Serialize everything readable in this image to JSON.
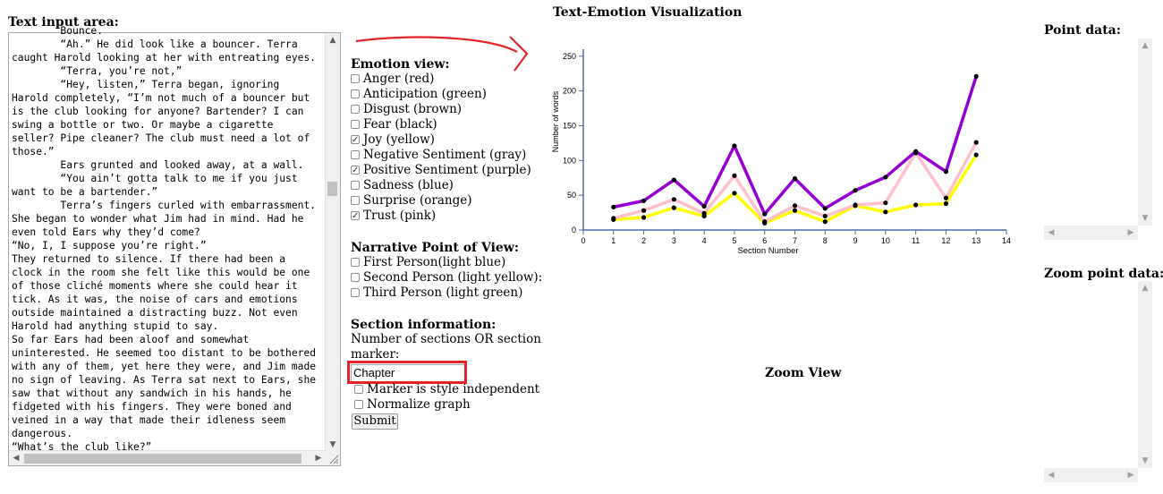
{
  "text_input": {
    "label": "Text input area:",
    "lines": [
      "        Bounce.",
      "        “Ah.” He did look like a bouncer. Terra",
      "caught Harold looking at her with entreating eyes.",
      "        “Terra, you’re not,”",
      "        “Hey, listen,” Terra began, ignoring",
      "Harold completely, “I’m not much of a bouncer but",
      "is the club looking for anyone? Bartender? I can",
      "swing a bottle or two. Or maybe a cigarette",
      "seller? Pipe cleaner? The club must need a lot of",
      "those.”",
      "        Ears grunted and looked away, at a wall.",
      "        “You ain’t gotta talk to me if you just",
      "want to be a bartender.”",
      "        Terra’s fingers curled with embarrassment.",
      "She began to wonder what Jim had in mind. Had he",
      "even told Ears why they’d come?",
      "“No, I, I suppose you’re right.”",
      "They returned to silence. If there had been a",
      "clock in the room she felt like this would be one",
      "of those cliché moments where she could hear it",
      "tick. As it was, the noise of cars and emotions",
      "outside maintained a distracting buzz. Not even",
      "Harold had anything stupid to say.",
      "So far Ears had been aloof and somewhat",
      "uninterested. He seemed too distant to be bothered",
      "with any of them, yet here they were, and Jim made",
      "no sign of leaving. As Terra sat next to Ears, she",
      "saw that without any sandwich in his hands, he",
      "fidgeted with his fingers. They were boned and",
      "veined in a way that made their idleness seem",
      "dangerous.",
      "“What’s the club like?”"
    ]
  },
  "emotion_view": {
    "label": "Emotion view:",
    "items": [
      {
        "label": "Anger (red)",
        "checked": false
      },
      {
        "label": "Anticipation (green)",
        "checked": false
      },
      {
        "label": "Disgust (brown)",
        "checked": false
      },
      {
        "label": "Fear (black)",
        "checked": false
      },
      {
        "label": "Joy (yellow)",
        "checked": true
      },
      {
        "label": "Negative Sentiment (gray)",
        "checked": false
      },
      {
        "label": "Positive Sentiment (purple)",
        "checked": true
      },
      {
        "label": "Sadness (blue)",
        "checked": false
      },
      {
        "label": "Surprise (orange)",
        "checked": false
      },
      {
        "label": "Trust (pink)",
        "checked": true
      }
    ]
  },
  "narrative": {
    "label": "Narrative Point of View:",
    "items": [
      {
        "label": "First Person(light blue)",
        "checked": false
      },
      {
        "label": "Second Person (light yellow):",
        "checked": false
      },
      {
        "label": "Third Person (light green)",
        "checked": false
      }
    ]
  },
  "section": {
    "label": "Section information:",
    "help_line1": "Number of sections OR section",
    "help_line2": "marker:",
    "marker_value": "Chapter",
    "options": [
      {
        "label": "Marker is style independent",
        "checked": false
      },
      {
        "label": "Normalize graph",
        "checked": false
      }
    ],
    "submit_label": "Submit"
  },
  "visualization": {
    "title": "Text-Emotion Visualization",
    "zoom_title": "Zoom View"
  },
  "point_data": {
    "label": "Point data:"
  },
  "zoom_point_data": {
    "label": "Zoom point data:"
  },
  "colors": {
    "positive": "#9400d3",
    "trust": "#ffc0cb",
    "joy": "#ffff00",
    "annotation": "#e2242a"
  },
  "chart_data": {
    "type": "line",
    "title": "",
    "xlabel": "Section Number",
    "ylabel": "Number of words",
    "xlim": [
      0,
      14
    ],
    "ylim": [
      0,
      260
    ],
    "x_ticks": [
      0,
      1,
      2,
      3,
      4,
      5,
      6,
      7,
      8,
      9,
      10,
      11,
      12,
      13,
      14
    ],
    "y_ticks": [
      0,
      50,
      100,
      150,
      200,
      250
    ],
    "x": [
      1,
      2,
      3,
      4,
      5,
      6,
      7,
      8,
      9,
      10,
      11,
      12,
      13
    ],
    "series": [
      {
        "key": "positive",
        "color": "#9400d3",
        "values": [
          33,
          42,
          72,
          34,
          121,
          23,
          74,
          31,
          57,
          76,
          113,
          84,
          221
        ]
      },
      {
        "key": "trust",
        "color": "#ffc0cb",
        "values": [
          17,
          28,
          44,
          24,
          78,
          12,
          35,
          20,
          36,
          39,
          111,
          46,
          126
        ]
      },
      {
        "key": "joy",
        "color": "#ffff00",
        "values": [
          15,
          18,
          32,
          20,
          53,
          10,
          28,
          12,
          35,
          26,
          36,
          38,
          108
        ]
      }
    ]
  }
}
